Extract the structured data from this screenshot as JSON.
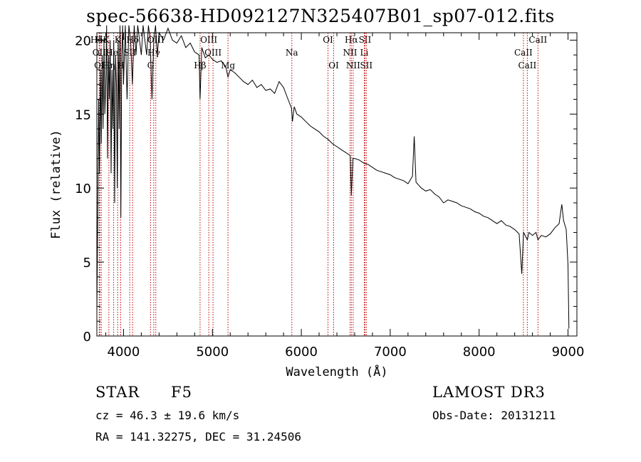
{
  "chart_data": {
    "type": "line",
    "title": "spec-56638-HD092127N325407B01_sp07-012.fits",
    "xlabel": "Wavelength (Å)",
    "ylabel": "Flux (relative)",
    "xlim": [
      3700,
      9100
    ],
    "ylim": [
      0,
      20.5
    ],
    "x_ticks": [
      4000,
      5000,
      6000,
      7000,
      8000,
      9000
    ],
    "y_ticks": [
      0,
      5,
      10,
      15,
      20
    ],
    "series": [
      {
        "name": "spectrum",
        "points": [
          [
            3700,
            1.5
          ],
          [
            3710,
            8
          ],
          [
            3720,
            16
          ],
          [
            3730,
            11
          ],
          [
            3740,
            18
          ],
          [
            3750,
            13
          ],
          [
            3760,
            19
          ],
          [
            3770,
            14
          ],
          [
            3780,
            20
          ],
          [
            3790,
            15
          ],
          [
            3800,
            17
          ],
          [
            3810,
            21
          ],
          [
            3820,
            12
          ],
          [
            3830,
            19
          ],
          [
            3840,
            16
          ],
          [
            3850,
            20
          ],
          [
            3860,
            11
          ],
          [
            3870,
            18
          ],
          [
            3880,
            14
          ],
          [
            3890,
            20
          ],
          [
            3900,
            9
          ],
          [
            3910,
            19
          ],
          [
            3920,
            17
          ],
          [
            3930,
            10
          ],
          [
            3940,
            20
          ],
          [
            3950,
            14
          ],
          [
            3960,
            21
          ],
          [
            3970,
            8
          ],
          [
            3980,
            19
          ],
          [
            3990,
            21
          ],
          [
            4000,
            17
          ],
          [
            4020,
            21
          ],
          [
            4040,
            16
          ],
          [
            4060,
            21
          ],
          [
            4080,
            20
          ],
          [
            4100,
            17
          ],
          [
            4120,
            21
          ],
          [
            4140,
            19
          ],
          [
            4160,
            21
          ],
          [
            4180,
            20
          ],
          [
            4200,
            19
          ],
          [
            4220,
            21
          ],
          [
            4240,
            20
          ],
          [
            4260,
            19
          ],
          [
            4280,
            21
          ],
          [
            4300,
            20
          ],
          [
            4320,
            16
          ],
          [
            4340,
            20
          ],
          [
            4360,
            21
          ],
          [
            4380,
            19
          ],
          [
            4400,
            20.5
          ],
          [
            4450,
            20
          ],
          [
            4500,
            20.8
          ],
          [
            4550,
            20
          ],
          [
            4600,
            19.8
          ],
          [
            4650,
            20.3
          ],
          [
            4700,
            19.5
          ],
          [
            4750,
            19.8
          ],
          [
            4800,
            19.2
          ],
          [
            4850,
            19
          ],
          [
            4861,
            16
          ],
          [
            4880,
            19.5
          ],
          [
            4920,
            18.8
          ],
          [
            4960,
            19
          ],
          [
            5000,
            18.7
          ],
          [
            5050,
            18.5
          ],
          [
            5100,
            18.6
          ],
          [
            5150,
            18.2
          ],
          [
            5175,
            17.5
          ],
          [
            5200,
            18
          ],
          [
            5250,
            17.8
          ],
          [
            5300,
            17.5
          ],
          [
            5350,
            17.2
          ],
          [
            5400,
            17
          ],
          [
            5450,
            17.3
          ],
          [
            5500,
            16.8
          ],
          [
            5550,
            17
          ],
          [
            5600,
            16.6
          ],
          [
            5650,
            16.7
          ],
          [
            5700,
            16.4
          ],
          [
            5750,
            17.2
          ],
          [
            5800,
            16.8
          ],
          [
            5850,
            16
          ],
          [
            5890,
            15.4
          ],
          [
            5900,
            14.5
          ],
          [
            5920,
            15.5
          ],
          [
            5950,
            15
          ],
          [
            6000,
            14.8
          ],
          [
            6050,
            14.5
          ],
          [
            6100,
            14.2
          ],
          [
            6150,
            14
          ],
          [
            6200,
            13.8
          ],
          [
            6250,
            13.5
          ],
          [
            6300,
            13.3
          ],
          [
            6350,
            13
          ],
          [
            6400,
            12.8
          ],
          [
            6450,
            12.6
          ],
          [
            6500,
            12.4
          ],
          [
            6550,
            12.2
          ],
          [
            6563,
            9.5
          ],
          [
            6580,
            12
          ],
          [
            6600,
            12
          ],
          [
            6650,
            11.9
          ],
          [
            6700,
            11.7
          ],
          [
            6750,
            11.6
          ],
          [
            6800,
            11.4
          ],
          [
            6850,
            11.2
          ],
          [
            6900,
            11.1
          ],
          [
            6950,
            11
          ],
          [
            7000,
            10.9
          ],
          [
            7050,
            10.7
          ],
          [
            7100,
            10.6
          ],
          [
            7150,
            10.5
          ],
          [
            7200,
            10.3
          ],
          [
            7250,
            10.8
          ],
          [
            7270,
            13.5
          ],
          [
            7290,
            10.4
          ],
          [
            7350,
            10
          ],
          [
            7400,
            9.8
          ],
          [
            7450,
            9.9
          ],
          [
            7500,
            9.6
          ],
          [
            7550,
            9.4
          ],
          [
            7600,
            9
          ],
          [
            7650,
            9.2
          ],
          [
            7700,
            9.1
          ],
          [
            7750,
            9
          ],
          [
            7800,
            8.8
          ],
          [
            7850,
            8.7
          ],
          [
            7900,
            8.6
          ],
          [
            7950,
            8.4
          ],
          [
            8000,
            8.3
          ],
          [
            8050,
            8.1
          ],
          [
            8100,
            8
          ],
          [
            8150,
            7.8
          ],
          [
            8200,
            7.6
          ],
          [
            8250,
            7.8
          ],
          [
            8300,
            7.5
          ],
          [
            8350,
            7.4
          ],
          [
            8400,
            7.2
          ],
          [
            8450,
            6.9
          ],
          [
            8480,
            4.2
          ],
          [
            8500,
            7
          ],
          [
            8542,
            6.5
          ],
          [
            8560,
            7
          ],
          [
            8600,
            6.8
          ],
          [
            8640,
            7
          ],
          [
            8662,
            6.5
          ],
          [
            8700,
            6.8
          ],
          [
            8750,
            6.7
          ],
          [
            8800,
            6.9
          ],
          [
            8850,
            7.3
          ],
          [
            8900,
            7.6
          ],
          [
            8930,
            8.9
          ],
          [
            8950,
            7.8
          ],
          [
            8980,
            7.2
          ],
          [
            9000,
            4.8
          ],
          [
            9010,
            0.5
          ]
        ]
      }
    ],
    "lines": [
      {
        "label": "HδK",
        "x": 3734,
        "row": 0
      },
      {
        "label": "Hε",
        "x": 3750,
        "row": 0
      },
      {
        "label": "K",
        "x": 3934,
        "row": 0
      },
      {
        "label": "Hδ",
        "x": 4102,
        "row": 0
      },
      {
        "label": "OIII",
        "x": 4363,
        "row": 0
      },
      {
        "label": "OII",
        "x": 3727,
        "row": 1
      },
      {
        "label": "HeI",
        "x": 3889,
        "row": 1
      },
      {
        "label": "SII",
        "x": 4070,
        "row": 1
      },
      {
        "label": "Hγ",
        "x": 4340,
        "row": 1
      },
      {
        "label": "OI",
        "x": 3727,
        "row": 2
      },
      {
        "label": "Hη",
        "x": 3835,
        "row": 2
      },
      {
        "label": "H",
        "x": 3968,
        "row": 2
      },
      {
        "label": "G",
        "x": 4304,
        "row": 2
      },
      {
        "label": "OIII",
        "x": 4959,
        "row": 0
      },
      {
        "label": "OIII",
        "x": 5007,
        "row": 1
      },
      {
        "label": "Hβ",
        "x": 4861,
        "row": 2
      },
      {
        "label": "Mg",
        "x": 5175,
        "row": 2
      },
      {
        "label": "Na",
        "x": 5893,
        "row": 1
      },
      {
        "label": "OI",
        "x": 6300,
        "row": 0
      },
      {
        "label": "OI",
        "x": 6364,
        "row": 2
      },
      {
        "label": "Hα",
        "x": 6563,
        "row": 0
      },
      {
        "label": "NII",
        "x": 6548,
        "row": 1
      },
      {
        "label": "NII",
        "x": 6583,
        "row": 2
      },
      {
        "label": "SII",
        "x": 6716,
        "row": 0
      },
      {
        "label": "Li",
        "x": 6708,
        "row": 1
      },
      {
        "label": "SII",
        "x": 6731,
        "row": 2
      },
      {
        "label": "CaII",
        "x": 8662,
        "row": 0
      },
      {
        "label": "CaII",
        "x": 8498,
        "row": 1
      },
      {
        "label": "CaII",
        "x": 8542,
        "row": 2
      }
    ]
  },
  "info": {
    "class": "STAR",
    "subclass": "F5",
    "survey": "LAMOST DR3",
    "cz": "cz = 46.3 ± 19.6 km/s",
    "obs_date": "Obs-Date: 20131211",
    "coords": "RA = 141.32275, DEC =  31.24506"
  }
}
